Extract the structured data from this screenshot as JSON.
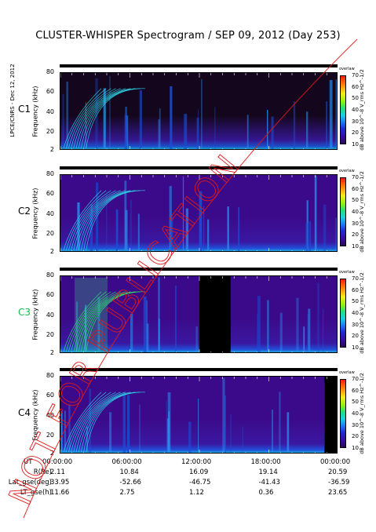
{
  "title": "CLUSTER-WHISPER Spectrogram / SEP 09, 2012 (Day 253)",
  "side_text": "LPCE/CNRS - Dec 12, 2012",
  "watermark": "NOT FOR PUBLICATION",
  "colorbar": {
    "top_label": "overlaw",
    "label": "dB above 10^-8 V_rms Hz^-1/2",
    "ticks": [
      "70",
      "60",
      "50",
      "40",
      "30",
      "20",
      "10"
    ]
  },
  "chart_data": {
    "type": "heatmap",
    "xlabel": "UT",
    "ylabel": "Frequency (kHz)",
    "x_ticks": [
      "00:00:00",
      "06:00:00",
      "12:00:00",
      "18:00:00",
      "00:00:00"
    ],
    "y_ticks": [
      "80",
      "60",
      "40",
      "20",
      "2"
    ],
    "ylim": [
      2,
      80
    ],
    "zlim": [
      10,
      70
    ],
    "panels": [
      {
        "spacecraft": "C1",
        "label_color": "#000000",
        "data_gap_hours": []
      },
      {
        "spacecraft": "C2",
        "label_color": "#000000",
        "data_gap_hours": []
      },
      {
        "spacecraft": "C3",
        "label_color": "#13c04a",
        "data_gap_hours": [
          [
            12.0,
            14.7
          ]
        ]
      },
      {
        "spacecraft": "C4",
        "label_color": "#000000",
        "data_gap_hours": [
          [
            22.8,
            24.0
          ]
        ]
      }
    ]
  },
  "ephemeris": {
    "rows": [
      {
        "label": "R(Re)",
        "values": [
          "2.11",
          "10.84",
          "16.09",
          "19.14",
          "20.59"
        ]
      },
      {
        "label": "Lat_gse(deg)",
        "values": [
          "33.95",
          "-52.66",
          "-46.75",
          "-41.43",
          "-36.59"
        ]
      },
      {
        "label": "LT_gse(h)",
        "values": [
          "11.66",
          "2.75",
          "1.12",
          "0.36",
          "23.65"
        ]
      }
    ]
  }
}
